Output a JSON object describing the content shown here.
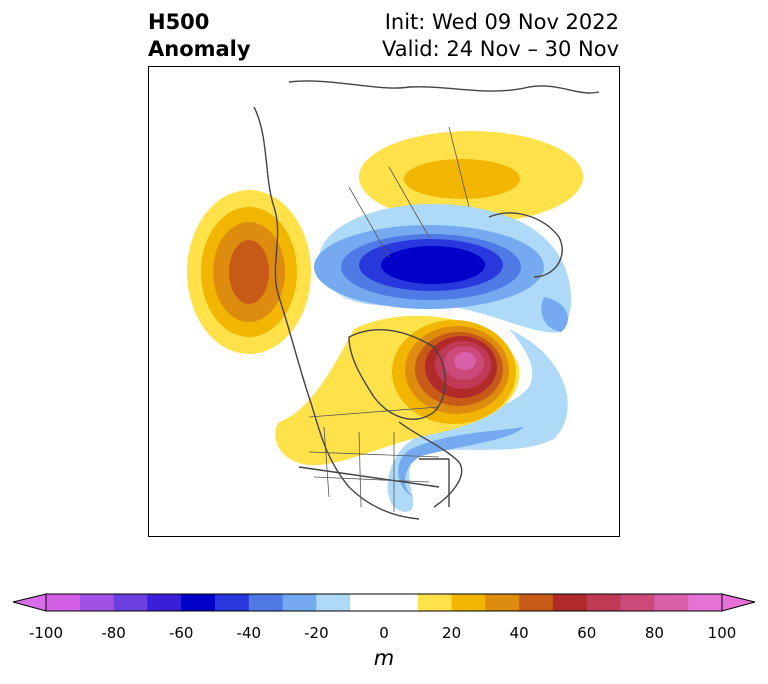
{
  "header": {
    "left_line1": "H500",
    "left_line2": "Anomaly",
    "right_line1": "Init: Wed 09 Nov 2022",
    "right_line2": "Valid: 24 Nov – 30 Nov"
  },
  "colorbar": {
    "units": "m",
    "tick_labels": [
      "-100",
      "-80",
      "-60",
      "-40",
      "-20",
      "0",
      "20",
      "40",
      "60",
      "80",
      "100"
    ],
    "bins": [
      {
        "range": [
          -100,
          -90
        ],
        "color": "#d35fe6"
      },
      {
        "range": [
          -90,
          -80
        ],
        "color": "#a152e6"
      },
      {
        "range": [
          -80,
          -70
        ],
        "color": "#6e3fe0"
      },
      {
        "range": [
          -70,
          -60
        ],
        "color": "#3a1fd8"
      },
      {
        "range": [
          -60,
          -50
        ],
        "color": "#0000c8"
      },
      {
        "range": [
          -50,
          -40
        ],
        "color": "#2838dc"
      },
      {
        "range": [
          -40,
          -30
        ],
        "color": "#4f7ae6"
      },
      {
        "range": [
          -30,
          -20
        ],
        "color": "#76aaf0"
      },
      {
        "range": [
          -20,
          -10
        ],
        "color": "#aedaf8"
      },
      {
        "range": [
          -10,
          0
        ],
        "color": "#ffffff"
      },
      {
        "range": [
          0,
          10
        ],
        "color": "#ffffff"
      },
      {
        "range": [
          10,
          20
        ],
        "color": "#ffe14a"
      },
      {
        "range": [
          20,
          30
        ],
        "color": "#f2b600"
      },
      {
        "range": [
          30,
          40
        ],
        "color": "#de8c10"
      },
      {
        "range": [
          40,
          50
        ],
        "color": "#c85a18"
      },
      {
        "range": [
          50,
          60
        ],
        "color": "#b02a2a"
      },
      {
        "range": [
          60,
          70
        ],
        "color": "#c03a55"
      },
      {
        "range": [
          70,
          80
        ],
        "color": "#cc4a7a"
      },
      {
        "range": [
          80,
          90
        ],
        "color": "#d860a8"
      },
      {
        "range": [
          90,
          100
        ],
        "color": "#e672d6"
      }
    ],
    "under_color": "#d76ee8",
    "over_color": "#e672d6"
  },
  "map": {
    "projection": "polar stereographic, North America",
    "features": [
      {
        "name": "ridge-north-pacific",
        "peak_anomaly_m": 45
      },
      {
        "name": "trough-arctic-canada",
        "peak_anomaly_m": -60
      },
      {
        "name": "ridge-hudson-bay",
        "peak_anomaly_m": 85
      },
      {
        "name": "ridge-siberia",
        "peak_anomaly_m": 25
      },
      {
        "name": "trough-eastern-us-atlantic",
        "peak_anomaly_m": -30
      }
    ]
  }
}
